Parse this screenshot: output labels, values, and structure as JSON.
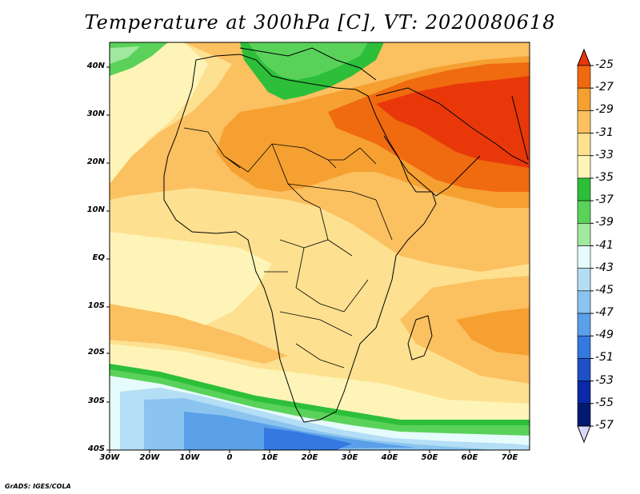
{
  "title": "Temperature at 300hPa [C], VT: 2020080618",
  "footer": "GrADS: IGES/COLA",
  "map": {
    "lat_labels": [
      "40N",
      "30N",
      "20N",
      "10N",
      "EQ",
      "10S",
      "20S",
      "30S",
      "40S"
    ],
    "lon_labels": [
      "30W",
      "20W",
      "10W",
      "0",
      "10E",
      "20E",
      "30E",
      "40E",
      "50E",
      "60E",
      "70E"
    ]
  },
  "colorbar": {
    "labels": [
      "-25",
      "-27",
      "-29",
      "-31",
      "-33",
      "-35",
      "-37",
      "-39",
      "-41",
      "-43",
      "-45",
      "-47",
      "-49",
      "-51",
      "-53",
      "-55",
      "-57"
    ],
    "colors": [
      "#e8380a",
      "#f06a10",
      "#f5a030",
      "#fbc060",
      "#fde090",
      "#fef4b8",
      "#2dbf3a",
      "#5ad25a",
      "#a0e8a0",
      "#e6fbfb",
      "#b4def5",
      "#8cc4f0",
      "#5aa0e8",
      "#3478e0",
      "#1e50c8",
      "#0c28a8",
      "#001a70",
      "#d8d8f8"
    ]
  },
  "colors": {
    "hot": "#e8380a",
    "warm": "#f06a10",
    "orange": "#f5a030",
    "light_orange": "#fbc060",
    "tan": "#fde090",
    "pale": "#fef4b8",
    "green": "#2dbf3a",
    "light_green": "#5ad25a",
    "pale_green": "#a0e8a0",
    "pale_cyan": "#e6fbfb",
    "light_blue": "#b4def5",
    "blue": "#8cc4f0",
    "mid_blue": "#5aa0e8",
    "deep_blue": "#3478e0"
  }
}
